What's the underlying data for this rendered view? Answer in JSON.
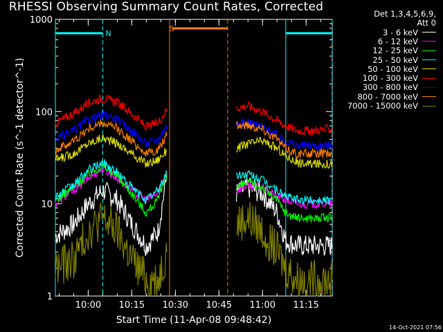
{
  "title": "RHESSI Observing Summary Count Rates, Corrected",
  "timestamp": "14-Oct-2021 07:56",
  "legend": {
    "header_line1": "Det 1,3,4,5,6,9,",
    "header_line2": "Att 0",
    "entries": [
      {
        "label": "3 - 6 keV",
        "color": "#ffffff"
      },
      {
        "label": "6 - 12 keV",
        "color": "#ff00ff"
      },
      {
        "label": "12 - 25 keV",
        "color": "#00ff00"
      },
      {
        "label": "25 - 50 keV",
        "color": "#00ffff"
      },
      {
        "label": "50 - 100 keV",
        "color": "#e0e000"
      },
      {
        "label": "100 - 300 keV",
        "color": "#ff0000"
      },
      {
        "label": "300 - 800 keV",
        "color": "#0000ff"
      },
      {
        "label": "800 - 7000 keV",
        "color": "#ff8000"
      },
      {
        "label": "7000 - 15000 keV",
        "color": "#808000"
      }
    ]
  },
  "chart_data": {
    "type": "line",
    "title": "RHESSI Observing Summary Count Rates, Corrected",
    "xlabel": "Start Time (11-Apr-08 09:48:42)",
    "ylabel": "Corrected Count Rate (s^-1 detector^-1)",
    "y_scale": "log",
    "ylim": [
      1,
      1000
    ],
    "xlim": [
      "09:48:42",
      "11:24:00"
    ],
    "x_ticks": [
      "10:00",
      "10:15",
      "10:30",
      "10:45",
      "11:00",
      "11:15"
    ],
    "y_ticks": [
      "1",
      "10",
      "100",
      "1000"
    ],
    "markers": [
      {
        "label": "N",
        "time": "10:05",
        "color": "#00ffff"
      },
      {
        "label": "S",
        "time": "10:27",
        "color": "#ff8000"
      }
    ],
    "night_periods": [
      {
        "start": "09:48:42",
        "end": "10:05",
        "color": "#00ffff"
      },
      {
        "start": "11:08",
        "end": "11:24",
        "color": "#00ffff"
      }
    ],
    "saa_periods": [
      {
        "start": "10:28",
        "end": "10:48",
        "color": "#ff8000"
      }
    ],
    "gap": {
      "start": "10:28",
      "end": "10:51"
    },
    "series": [
      {
        "name": "3 - 6 keV",
        "color": "#ffffff",
        "segments": [
          {
            "x": [
              "09:48:42",
              "09:55",
              "10:00",
              "10:05",
              "10:10",
              "10:15",
              "10:20",
              "10:24",
              "10:27"
            ],
            "y": [
              4.5,
              6,
              10,
              14,
              11,
              6,
              3.5,
              5,
              20
            ]
          },
          {
            "x": [
              "10:51",
              "10:55",
              "11:00",
              "11:05",
              "11:08",
              "11:12",
              "11:16",
              "11:24"
            ],
            "y": [
              13,
              15,
              13,
              8,
              4,
              3.5,
              3.5,
              3.5
            ]
          }
        ]
      },
      {
        "name": "6 - 12 keV",
        "color": "#ff00ff",
        "segments": [
          {
            "x": [
              "09:48:42",
              "09:55",
              "10:00",
              "10:05",
              "10:10",
              "10:15",
              "10:20",
              "10:24",
              "10:27"
            ],
            "y": [
              10,
              14,
              19,
              24,
              19,
              14,
              11,
              13,
              22
            ]
          },
          {
            "x": [
              "10:51",
              "10:55",
              "11:00",
              "11:05",
              "11:08",
              "11:12",
              "11:16",
              "11:24"
            ],
            "y": [
              14,
              16,
              15,
              12,
              11,
              10,
              10,
              10
            ]
          }
        ]
      },
      {
        "name": "12 - 25 keV",
        "color": "#00ff00",
        "segments": [
          {
            "x": [
              "09:48:42",
              "09:55",
              "10:00",
              "10:05",
              "10:10",
              "10:15",
              "10:20",
              "10:24",
              "10:27"
            ],
            "y": [
              11,
              15,
              21,
              26,
              20,
              13,
              8,
              11,
              21
            ]
          },
          {
            "x": [
              "10:51",
              "10:55",
              "11:00",
              "11:05",
              "11:08",
              "11:12",
              "11:16",
              "11:24"
            ],
            "y": [
              15,
              17,
              15,
              11,
              8,
              7,
              7,
              7
            ]
          }
        ]
      },
      {
        "name": "25 - 50 keV",
        "color": "#00ffff",
        "segments": [
          {
            "x": [
              "09:48:42",
              "09:55",
              "10:00",
              "10:05",
              "10:10",
              "10:15",
              "10:20",
              "10:24",
              "10:27"
            ],
            "y": [
              12,
              16,
              23,
              28,
              22,
              15,
              11,
              14,
              22
            ]
          },
          {
            "x": [
              "10:51",
              "10:55",
              "11:00",
              "11:05",
              "11:08",
              "11:12",
              "11:16",
              "11:24"
            ],
            "y": [
              20,
              21,
              18,
              14,
              12,
              11,
              11,
              11
            ]
          }
        ]
      },
      {
        "name": "50 - 100 keV",
        "color": "#e0e000",
        "segments": [
          {
            "x": [
              "09:48:42",
              "09:55",
              "10:00",
              "10:05",
              "10:10",
              "10:15",
              "10:20",
              "10:24",
              "10:27"
            ],
            "y": [
              30,
              35,
              45,
              52,
              45,
              35,
              27,
              30,
              38
            ]
          },
          {
            "x": [
              "10:51",
              "10:55",
              "11:00",
              "11:05",
              "11:08",
              "11:12",
              "11:16",
              "11:24"
            ],
            "y": [
              40,
              45,
              48,
              40,
              33,
              28,
              27,
              27
            ]
          }
        ]
      },
      {
        "name": "100 - 300 keV",
        "color": "#ff0000",
        "segments": [
          {
            "x": [
              "09:48:42",
              "09:55",
              "10:00",
              "10:05",
              "10:10",
              "10:15",
              "10:20",
              "10:24",
              "10:27"
            ],
            "y": [
              75,
              95,
              125,
              140,
              125,
              95,
              68,
              75,
              105
            ]
          },
          {
            "x": [
              "10:51",
              "10:55",
              "11:00",
              "11:05",
              "11:08",
              "11:12",
              "11:16",
              "11:24"
            ],
            "y": [
              110,
              115,
              100,
              80,
              70,
              62,
              62,
              65
            ]
          }
        ]
      },
      {
        "name": "300 - 800 keV",
        "color": "#0000ff",
        "segments": [
          {
            "x": [
              "09:48:42",
              "09:55",
              "10:00",
              "10:05",
              "10:10",
              "10:15",
              "10:20",
              "10:24",
              "10:27"
            ],
            "y": [
              50,
              62,
              82,
              92,
              82,
              62,
              45,
              50,
              70
            ]
          },
          {
            "x": [
              "10:51",
              "10:55",
              "11:00",
              "11:05",
              "11:08",
              "11:12",
              "11:16",
              "11:24"
            ],
            "y": [
              75,
              77,
              68,
              55,
              48,
              43,
              43,
              43
            ]
          }
        ]
      },
      {
        "name": "800 - 7000 keV",
        "color": "#ff8000",
        "segments": [
          {
            "x": [
              "09:48:42",
              "09:55",
              "10:00",
              "10:05",
              "10:10",
              "10:15",
              "10:20",
              "10:24",
              "10:27"
            ],
            "y": [
              38,
              48,
              65,
              75,
              65,
              48,
              35,
              38,
              55
            ]
          },
          {
            "x": [
              "10:51",
              "10:55",
              "11:00",
              "11:05",
              "11:08",
              "11:12",
              "11:16",
              "11:24"
            ],
            "y": [
              70,
              72,
              65,
              50,
              40,
              35,
              35,
              35
            ]
          }
        ]
      },
      {
        "name": "7000 - 15000 keV",
        "color": "#808000",
        "segments": [
          {
            "x": [
              "09:48:42",
              "09:55",
              "10:00",
              "10:05",
              "10:10",
              "10:15",
              "10:20",
              "10:24",
              "10:27"
            ],
            "y": [
              2,
              2.5,
              5,
              7,
              5,
              2.5,
              1.5,
              1.5,
              3
            ]
          },
          {
            "x": [
              "10:51",
              "10:55",
              "11:00",
              "11:05",
              "11:08",
              "11:12",
              "11:16",
              "11:24"
            ],
            "y": [
              6,
              7,
              5,
              3,
              2,
              1.5,
              1.5,
              1.5
            ]
          }
        ]
      }
    ]
  }
}
